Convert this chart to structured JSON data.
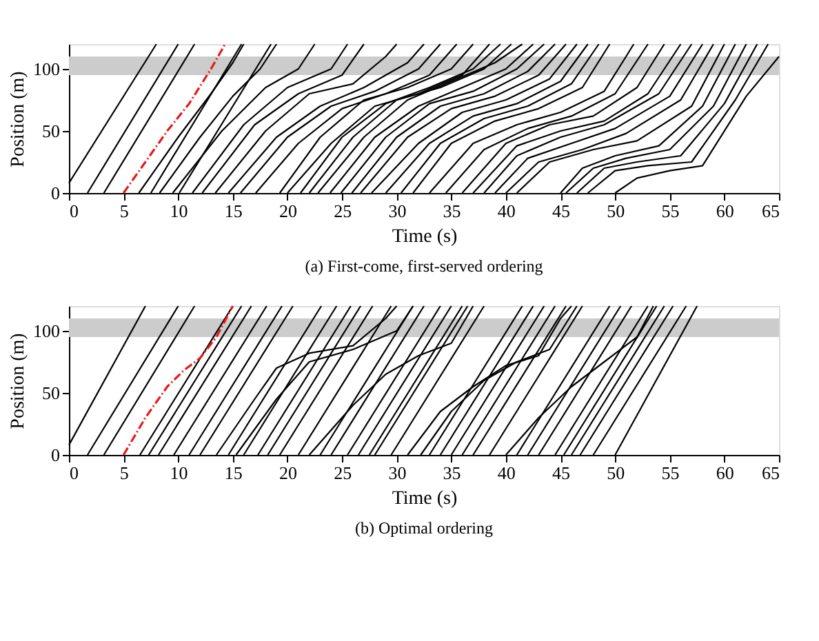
{
  "chart_data": [
    {
      "type": "line",
      "title": "(a) First-come, first-served ordering",
      "xlabel": "Time (s)",
      "ylabel": "Position (m)",
      "xlim": [
        0,
        65
      ],
      "ylim": [
        0,
        120
      ],
      "xticks": [
        0,
        5,
        10,
        15,
        20,
        25,
        30,
        35,
        40,
        45,
        50,
        55,
        60,
        65
      ],
      "yticks": [
        0,
        50,
        100
      ],
      "grid": false,
      "legend": false,
      "bands": [
        {
          "axis": "y",
          "from": 95,
          "to": 110,
          "color": "#cccccc"
        }
      ],
      "series": [
        {
          "color": "#000000",
          "x": [
            0,
            8
          ],
          "values": [
            8,
            120
          ]
        },
        {
          "color": "#000000",
          "x": [
            1.7,
            10
          ],
          "values": [
            0,
            120
          ]
        },
        {
          "color": "#000000",
          "x": [
            3.2,
            11.5
          ],
          "values": [
            0,
            120
          ]
        },
        {
          "color": "#e41a1c",
          "line_style": "dashed",
          "x": [
            5,
            7,
            9,
            11,
            13,
            14.3
          ],
          "values": [
            0,
            25,
            50,
            72,
            100,
            120
          ]
        },
        {
          "color": "#000000",
          "x": [
            6.4,
            10,
            13,
            15,
            16
          ],
          "values": [
            0,
            45,
            80,
            105,
            120
          ]
        },
        {
          "color": "#000000",
          "x": [
            7.5,
            15.8
          ],
          "values": [
            0,
            120
          ]
        },
        {
          "color": "#000000",
          "x": [
            8.3,
            12,
            15,
            17.5,
            19
          ],
          "values": [
            0,
            45,
            78,
            100,
            120
          ]
        },
        {
          "color": "#000000",
          "x": [
            9.5,
            14,
            18,
            21,
            22.5
          ],
          "values": [
            0,
            50,
            85,
            100,
            120
          ]
        },
        {
          "color": "#000000",
          "x": [
            10.1,
            18.5
          ],
          "values": [
            0,
            120
          ]
        },
        {
          "color": "#000000",
          "x": [
            11.3,
            16,
            20,
            24,
            25.5
          ],
          "values": [
            0,
            55,
            85,
            100,
            120
          ]
        },
        {
          "color": "#000000",
          "x": [
            12.2,
            17,
            21,
            25,
            27
          ],
          "values": [
            0,
            55,
            80,
            95,
            120
          ]
        },
        {
          "color": "#000000",
          "x": [
            13.4,
            18,
            22,
            26,
            29,
            30
          ],
          "values": [
            0,
            50,
            80,
            88,
            110,
            120
          ]
        },
        {
          "color": "#000000",
          "x": [
            14.6,
            19,
            23,
            27,
            31,
            32.5
          ],
          "values": [
            0,
            45,
            70,
            85,
            105,
            120
          ]
        },
        {
          "color": "#000000",
          "x": [
            15.7,
            20,
            24,
            28,
            32,
            34
          ],
          "values": [
            0,
            45,
            70,
            82,
            100,
            120
          ]
        },
        {
          "color": "#000000",
          "x": [
            17.1,
            21,
            25,
            29,
            33,
            35.5
          ],
          "values": [
            0,
            40,
            68,
            80,
            95,
            120
          ]
        },
        {
          "color": "#000000",
          "x": [
            19.3,
            23,
            27,
            31,
            35,
            37
          ],
          "values": [
            0,
            45,
            75,
            85,
            100,
            120
          ]
        },
        {
          "color": "#000000",
          "x": [
            20,
            24,
            28,
            32,
            36,
            38.5
          ],
          "values": [
            0,
            40,
            70,
            80,
            95,
            120
          ]
        },
        {
          "color": "#000000",
          "x": [
            21.2,
            25,
            29,
            33,
            37,
            39.5
          ],
          "values": [
            0,
            45,
            72,
            85,
            100,
            120
          ]
        },
        {
          "color": "#000000",
          "x": [
            22,
            26,
            30,
            34,
            38,
            40.5
          ],
          "values": [
            0,
            45,
            75,
            85,
            100,
            120
          ]
        },
        {
          "color": "#000000",
          "x": [
            22.8,
            27,
            31,
            35,
            39,
            41.5
          ],
          "values": [
            0,
            45,
            75,
            90,
            105,
            120
          ]
        },
        {
          "color": "#000000",
          "x": [
            23.9,
            28,
            32,
            36,
            40,
            42.5
          ],
          "values": [
            0,
            45,
            70,
            85,
            100,
            120
          ]
        },
        {
          "color": "#000000",
          "x": [
            24.9,
            29,
            33,
            37,
            41,
            43.5
          ],
          "values": [
            0,
            45,
            72,
            82,
            100,
            120
          ]
        },
        {
          "color": "#000000",
          "x": [
            25.9,
            30,
            34,
            38,
            42,
            44.5
          ],
          "values": [
            0,
            45,
            70,
            80,
            98,
            120
          ]
        },
        {
          "color": "#000000",
          "x": [
            26.7,
            31,
            35,
            39,
            43,
            45.5
          ],
          "values": [
            0,
            45,
            68,
            78,
            95,
            120
          ]
        },
        {
          "color": "#000000",
          "x": [
            27.7,
            32,
            36,
            40,
            44,
            46.5
          ],
          "values": [
            0,
            40,
            65,
            75,
            92,
            120
          ]
        },
        {
          "color": "#000000",
          "x": [
            29,
            33,
            37,
            41,
            45,
            47.5
          ],
          "values": [
            0,
            40,
            62,
            72,
            90,
            120
          ]
        },
        {
          "color": "#000000",
          "x": [
            30.4,
            34,
            38,
            42,
            46,
            48.5
          ],
          "values": [
            0,
            40,
            60,
            70,
            88,
            120
          ]
        },
        {
          "color": "#000000",
          "x": [
            31.5,
            35,
            39,
            43,
            47,
            49.5
          ],
          "values": [
            0,
            40,
            58,
            68,
            85,
            120
          ]
        },
        {
          "color": "#000000",
          "x": [
            33,
            37,
            41,
            45,
            49,
            51,
            51.7
          ],
          "values": [
            0,
            40,
            55,
            65,
            82,
            110,
            120
          ]
        },
        {
          "color": "#000000",
          "x": [
            34.5,
            38,
            42,
            46,
            50,
            53
          ],
          "values": [
            0,
            35,
            52,
            62,
            80,
            120
          ]
        },
        {
          "color": "#000000",
          "x": [
            36,
            40,
            44,
            48,
            52,
            54.5
          ],
          "values": [
            0,
            40,
            55,
            62,
            85,
            120
          ]
        },
        {
          "color": "#000000",
          "x": [
            37,
            41,
            45,
            49,
            53,
            56
          ],
          "values": [
            0,
            38,
            50,
            58,
            80,
            120
          ]
        },
        {
          "color": "#000000",
          "x": [
            38,
            41,
            45,
            49,
            54,
            57
          ],
          "values": [
            0,
            30,
            45,
            55,
            80,
            120
          ]
        },
        {
          "color": "#000000",
          "x": [
            39,
            42,
            46,
            50,
            55,
            58
          ],
          "values": [
            0,
            28,
            40,
            52,
            78,
            120
          ]
        },
        {
          "color": "#000000",
          "x": [
            40,
            43,
            47,
            51,
            56,
            59
          ],
          "values": [
            0,
            25,
            35,
            48,
            75,
            120
          ]
        },
        {
          "color": "#000000",
          "x": [
            41,
            44,
            48,
            52,
            57,
            60
          ],
          "values": [
            0,
            25,
            35,
            42,
            70,
            120
          ]
        },
        {
          "color": "#000000",
          "x": [
            45,
            47,
            50,
            54,
            58,
            61
          ],
          "values": [
            0,
            20,
            30,
            38,
            70,
            120
          ]
        },
        {
          "color": "#000000",
          "x": [
            45.5,
            48,
            51,
            55,
            59,
            62
          ],
          "values": [
            0,
            20,
            28,
            35,
            70,
            120
          ]
        },
        {
          "color": "#000000",
          "x": [
            46.5,
            49,
            52,
            56,
            60,
            63
          ],
          "values": [
            0,
            20,
            25,
            30,
            72,
            120
          ]
        },
        {
          "color": "#000000",
          "x": [
            47.5,
            50,
            53,
            57,
            61,
            64
          ],
          "values": [
            0,
            18,
            22,
            25,
            75,
            120
          ]
        },
        {
          "color": "#000000",
          "x": [
            50,
            52,
            55,
            58,
            62,
            65
          ],
          "values": [
            0,
            12,
            18,
            22,
            78,
            110
          ]
        }
      ]
    },
    {
      "type": "line",
      "title": "(b) Optimal ordering",
      "xlabel": "Time (s)",
      "ylabel": "Position (m)",
      "xlim": [
        0,
        65
      ],
      "ylim": [
        0,
        120
      ],
      "xticks": [
        0,
        5,
        10,
        15,
        20,
        25,
        30,
        35,
        40,
        45,
        50,
        55,
        60,
        65
      ],
      "yticks": [
        0,
        50,
        100
      ],
      "grid": false,
      "legend": false,
      "bands": [
        {
          "axis": "y",
          "from": 95,
          "to": 110,
          "color": "#cccccc"
        }
      ],
      "series": [
        {
          "color": "#000000",
          "x": [
            0,
            7
          ],
          "values": [
            8,
            120
          ]
        },
        {
          "color": "#000000",
          "x": [
            1.7,
            10
          ],
          "values": [
            0,
            120
          ]
        },
        {
          "color": "#000000",
          "x": [
            3.2,
            11.5
          ],
          "values": [
            0,
            120
          ]
        },
        {
          "color": "#e41a1c",
          "line_style": "dashed",
          "x": [
            5,
            7,
            9,
            10.5,
            12,
            13.5,
            15
          ],
          "values": [
            0,
            30,
            55,
            68,
            78,
            95,
            120
          ]
        },
        {
          "color": "#000000",
          "x": [
            6.5,
            15
          ],
          "values": [
            0,
            120
          ]
        },
        {
          "color": "#000000",
          "x": [
            7.3,
            15.8
          ],
          "values": [
            0,
            120
          ]
        },
        {
          "color": "#000000",
          "x": [
            8.2,
            16.7
          ],
          "values": [
            0,
            120
          ]
        },
        {
          "color": "#000000",
          "x": [
            9.6,
            18.1
          ],
          "values": [
            0,
            120
          ]
        },
        {
          "color": "#000000",
          "x": [
            11,
            19.5
          ],
          "values": [
            0,
            120
          ]
        },
        {
          "color": "#000000",
          "x": [
            12,
            20.5
          ],
          "values": [
            0,
            120
          ]
        },
        {
          "color": "#000000",
          "x": [
            13.5,
            17,
            19,
            22,
            26,
            29,
            30
          ],
          "values": [
            0,
            45,
            70,
            82,
            88,
            110,
            120
          ]
        },
        {
          "color": "#000000",
          "x": [
            14.6,
            23.1
          ],
          "values": [
            0,
            120
          ]
        },
        {
          "color": "#000000",
          "x": [
            15.3,
            19,
            22,
            26,
            30,
            31.5
          ],
          "values": [
            0,
            45,
            75,
            85,
            100,
            120
          ]
        },
        {
          "color": "#000000",
          "x": [
            16,
            24.5
          ],
          "values": [
            0,
            120
          ]
        },
        {
          "color": "#000000",
          "x": [
            17.3,
            25.8
          ],
          "values": [
            0,
            120
          ]
        },
        {
          "color": "#000000",
          "x": [
            18.2,
            26.7
          ],
          "values": [
            0,
            120
          ]
        },
        {
          "color": "#000000",
          "x": [
            19.3,
            27.8
          ],
          "values": [
            0,
            120
          ]
        },
        {
          "color": "#000000",
          "x": [
            21,
            29.5
          ],
          "values": [
            0,
            120
          ]
        },
        {
          "color": "#000000",
          "x": [
            22,
            26,
            29,
            32,
            35,
            37
          ],
          "values": [
            0,
            40,
            65,
            80,
            90,
            120
          ]
        },
        {
          "color": "#000000",
          "x": [
            23,
            31.5
          ],
          "values": [
            0,
            120
          ]
        },
        {
          "color": "#000000",
          "x": [
            24,
            32.5
          ],
          "values": [
            0,
            120
          ]
        },
        {
          "color": "#000000",
          "x": [
            25.5,
            34
          ],
          "values": [
            0,
            120
          ]
        },
        {
          "color": "#000000",
          "x": [
            26.5,
            35
          ],
          "values": [
            0,
            120
          ]
        },
        {
          "color": "#000000",
          "x": [
            27.5,
            36
          ],
          "values": [
            0,
            120
          ]
        },
        {
          "color": "#000000",
          "x": [
            28,
            36.5
          ],
          "values": [
            0,
            120
          ]
        },
        {
          "color": "#000000",
          "x": [
            29.5,
            38
          ],
          "values": [
            0,
            120
          ]
        },
        {
          "color": "#000000",
          "x": [
            31,
            34,
            37,
            40,
            43,
            45,
            46
          ],
          "values": [
            0,
            35,
            55,
            72,
            80,
            110,
            120
          ]
        },
        {
          "color": "#000000",
          "x": [
            32.2,
            35,
            38,
            41,
            44,
            46.5
          ],
          "values": [
            0,
            35,
            60,
            75,
            85,
            120
          ]
        },
        {
          "color": "#000000",
          "x": [
            33,
            41.5
          ],
          "values": [
            0,
            120
          ]
        },
        {
          "color": "#000000",
          "x": [
            34,
            42.5
          ],
          "values": [
            0,
            120
          ]
        },
        {
          "color": "#000000",
          "x": [
            35,
            43.5
          ],
          "values": [
            0,
            120
          ]
        },
        {
          "color": "#000000",
          "x": [
            36,
            44.5
          ],
          "values": [
            0,
            120
          ]
        },
        {
          "color": "#000000",
          "x": [
            37,
            45.5
          ],
          "values": [
            0,
            120
          ]
        },
        {
          "color": "#000000",
          "x": [
            38.5,
            47
          ],
          "values": [
            0,
            120
          ]
        },
        {
          "color": "#000000",
          "x": [
            40,
            43,
            46,
            49,
            52,
            53.5
          ],
          "values": [
            0,
            30,
            55,
            75,
            95,
            120
          ]
        },
        {
          "color": "#000000",
          "x": [
            41,
            49.5
          ],
          "values": [
            0,
            120
          ]
        },
        {
          "color": "#000000",
          "x": [
            42,
            50.5
          ],
          "values": [
            0,
            120
          ]
        },
        {
          "color": "#000000",
          "x": [
            43,
            51.5
          ],
          "values": [
            0,
            120
          ]
        },
        {
          "color": "#000000",
          "x": [
            44.5,
            53
          ],
          "values": [
            0,
            120
          ]
        },
        {
          "color": "#000000",
          "x": [
            45.3,
            53.8
          ],
          "values": [
            0,
            120
          ]
        },
        {
          "color": "#000000",
          "x": [
            46,
            54.5
          ],
          "values": [
            0,
            120
          ]
        },
        {
          "color": "#000000",
          "x": [
            46.8,
            55.3
          ],
          "values": [
            0,
            120
          ]
        },
        {
          "color": "#000000",
          "x": [
            48,
            56.5
          ],
          "values": [
            0,
            120
          ]
        },
        {
          "color": "#000000",
          "x": [
            50,
            57.5
          ],
          "values": [
            0,
            120
          ]
        }
      ]
    }
  ]
}
